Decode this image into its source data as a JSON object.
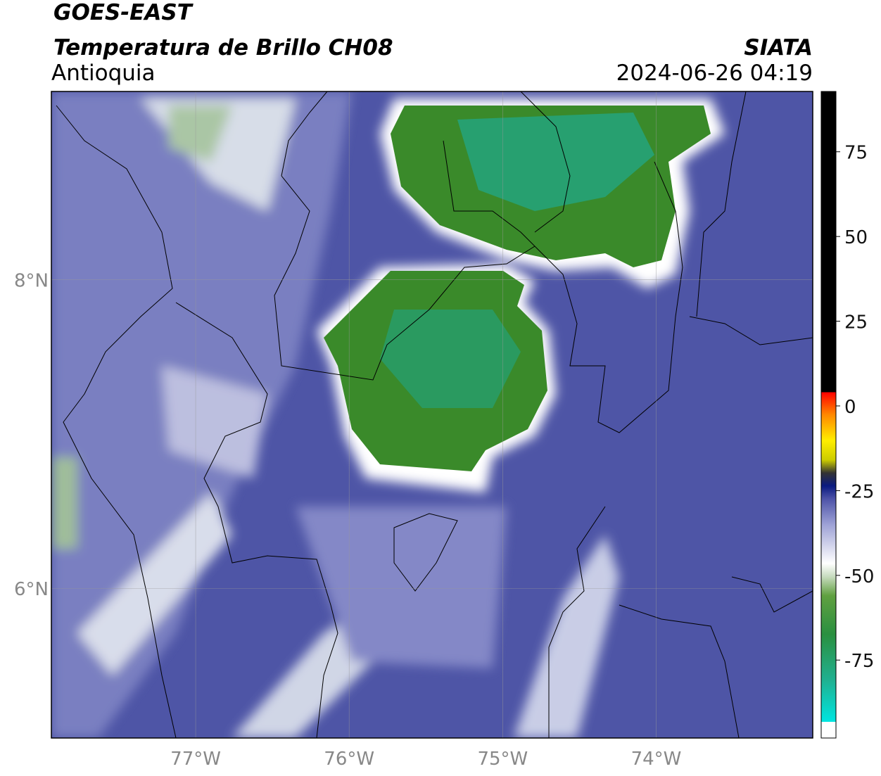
{
  "header": {
    "title": "GOES-EAST",
    "subtitle": "Temperatura de Brillo CH08",
    "region": "Antioquia",
    "source": "SIATA",
    "datetime": "2024-06-26 04:19"
  },
  "map": {
    "xlim": [
      -77.94,
      -72.98
    ],
    "ylim": [
      5.03,
      9.22
    ],
    "xticks": [
      {
        "value": -77,
        "label": "77°W"
      },
      {
        "value": -76,
        "label": "76°W"
      },
      {
        "value": -75,
        "label": "75°W"
      },
      {
        "value": -74,
        "label": "74°W"
      }
    ],
    "yticks": [
      {
        "value": 6,
        "label": "6°N"
      },
      {
        "value": 8,
        "label": "8°N"
      }
    ],
    "grid": true
  },
  "colorbar": {
    "lim": [
      -98,
      92.8
    ],
    "ticks": [
      75,
      50,
      25,
      0,
      -25,
      -50,
      -75
    ]
  }
}
